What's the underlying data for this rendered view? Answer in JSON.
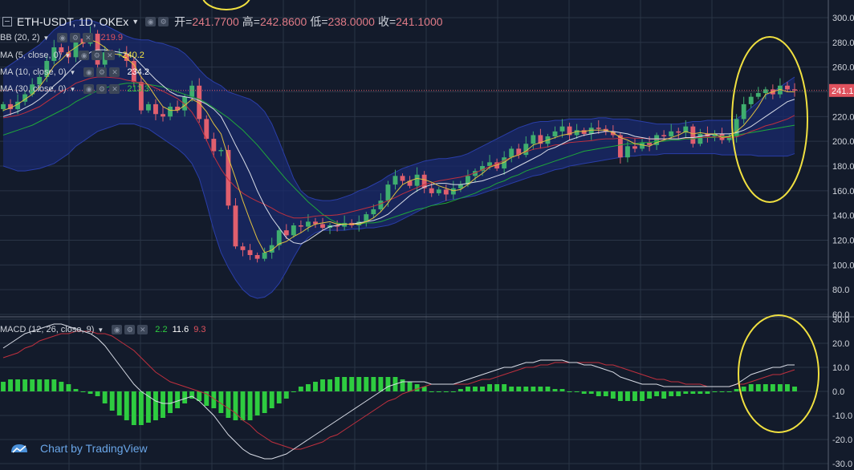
{
  "header": {
    "symbol": "ETH-USDT, 1D, OKEx",
    "open_label": "开=",
    "open": "241.7700",
    "high_label": "高=",
    "high": "242.8600",
    "low_label": "低=",
    "low": "238.0000",
    "close_label": "收=",
    "close": "241.1000"
  },
  "indicators": {
    "bb": {
      "label": "BB (20, 2)",
      "value": "219.9",
      "value_color": "#e0525e"
    },
    "ma5": {
      "label": "MA (5, close, 0)",
      "value": "240.2",
      "value_color": "#f5e642"
    },
    "ma10": {
      "label": "MA (10, close, 0)",
      "value": "234.2",
      "value_color": "#ffffff"
    },
    "ma30": {
      "label": "MA (30, close, 0)",
      "value": "213.3",
      "value_color": "#2ecc40"
    },
    "macd": {
      "label": "MACD (12, 26, close, 9)",
      "hist": "2.2",
      "macd": "11.6",
      "signal": "9.3",
      "hist_color": "#2ecc40",
      "macd_color": "#ffffff",
      "signal_color": "#e0525e"
    }
  },
  "price_label": "241.1",
  "watermark": "Chart by TradingView",
  "colors": {
    "up": "#3fae6f",
    "down": "#e05f6e",
    "bg": "#131b2b",
    "bb_fill": "#1a2a6c",
    "highlight": "#f0e040"
  },
  "chart_data": [
    {
      "type": "candlestick",
      "y_ticks": [
        "300.0",
        "280.0",
        "260.0",
        "240.0",
        "220.0",
        "200.0",
        "180.0",
        "160.0",
        "140.0",
        "120.0",
        "100.0",
        "80.0",
        "60.0"
      ],
      "ylim": [
        60,
        300
      ],
      "close": [
        230,
        226,
        232,
        238,
        246,
        252,
        265,
        276,
        272,
        268,
        283,
        279,
        287,
        262,
        272,
        270,
        271,
        265,
        248,
        225,
        230,
        222,
        220,
        228,
        225,
        236,
        245,
        218,
        202,
        192,
        193,
        148,
        115,
        112,
        108,
        105,
        110,
        116,
        128,
        124,
        132,
        131,
        135,
        133,
        130,
        132,
        131,
        134,
        132,
        135,
        141,
        145,
        152,
        165,
        172,
        168,
        164,
        173,
        162,
        158,
        161,
        157,
        162,
        165,
        172,
        176,
        180,
        183,
        178,
        187,
        194,
        189,
        198,
        205,
        198,
        204,
        208,
        212,
        205,
        209,
        206,
        211,
        210,
        208,
        205,
        187,
        196,
        194,
        199,
        197,
        205,
        204,
        208,
        207,
        212,
        198,
        206,
        204,
        206,
        201,
        204,
        218,
        230,
        236,
        239,
        242,
        238,
        245,
        242,
        241
      ],
      "ma5": [
        225,
        227,
        230,
        234,
        238,
        244,
        252,
        261,
        266,
        272,
        276,
        280,
        282,
        280,
        276,
        271,
        270,
        267,
        262,
        252,
        245,
        236,
        228,
        225,
        225,
        229,
        234,
        231,
        224,
        214,
        206,
        187,
        170,
        152,
        136,
        121,
        110,
        112,
        117,
        119,
        123,
        126,
        130,
        133,
        134,
        135,
        133,
        133,
        133,
        133,
        135,
        138,
        143,
        150,
        158,
        165,
        168,
        170,
        169,
        167,
        164,
        162,
        160,
        161,
        165,
        170,
        174,
        179,
        181,
        183,
        187,
        189,
        192,
        197,
        199,
        201,
        203,
        205,
        206,
        208,
        208,
        209,
        209,
        209,
        207,
        203,
        201,
        198,
        197,
        196,
        199,
        201,
        203,
        205,
        208,
        206,
        207,
        206,
        206,
        203,
        204,
        208,
        213,
        220,
        228,
        238,
        240,
        242,
        240,
        240
      ],
      "ma10": [
        220,
        222,
        224,
        227,
        230,
        234,
        239,
        245,
        250,
        256,
        262,
        267,
        272,
        274,
        274,
        273,
        272,
        271,
        268,
        262,
        256,
        250,
        245,
        240,
        237,
        236,
        235,
        233,
        230,
        226,
        220,
        209,
        197,
        186,
        174,
        160,
        148,
        138,
        130,
        122,
        118,
        117,
        120,
        124,
        128,
        131,
        132,
        133,
        133,
        134,
        135,
        136,
        138,
        141,
        146,
        151,
        156,
        160,
        163,
        165,
        166,
        166,
        165,
        165,
        166,
        167,
        168,
        170,
        172,
        174,
        177,
        180,
        183,
        186,
        189,
        193,
        195,
        198,
        201,
        203,
        205,
        206,
        207,
        208,
        208,
        207,
        206,
        204,
        203,
        202,
        202,
        202,
        202,
        202,
        203,
        203,
        204,
        205,
        206,
        206,
        206,
        207,
        209,
        212,
        216,
        220,
        224,
        228,
        232,
        234
      ],
      "ma30": [
        205,
        207,
        209,
        211,
        213,
        216,
        219,
        222,
        225,
        228,
        232,
        235,
        238,
        241,
        243,
        245,
        246,
        247,
        247,
        247,
        246,
        245,
        244,
        242,
        240,
        238,
        236,
        234,
        231,
        227,
        223,
        219,
        214,
        209,
        203,
        197,
        190,
        183,
        176,
        169,
        163,
        157,
        151,
        146,
        141,
        137,
        134,
        133,
        133,
        133,
        134,
        134,
        135,
        137,
        139,
        141,
        143,
        145,
        146,
        148,
        149,
        150,
        152,
        154,
        156,
        158,
        161,
        163,
        166,
        168,
        171,
        173,
        176,
        178,
        180,
        182,
        184,
        186,
        188,
        190,
        192,
        193,
        194,
        195,
        196,
        197,
        198,
        198,
        199,
        199,
        200,
        200,
        201,
        201,
        202,
        202,
        203,
        203,
        203,
        204,
        204,
        205,
        206,
        207,
        208,
        209,
        210,
        211,
        212,
        213
      ],
      "bb_upper": [
        258,
        262,
        266,
        270,
        274,
        278,
        284,
        290,
        294,
        296,
        298,
        298,
        298,
        296,
        294,
        291,
        288,
        285,
        283,
        282,
        282,
        280,
        279,
        277,
        275,
        271,
        265,
        258,
        252,
        248,
        245,
        240,
        238,
        236,
        234,
        230,
        224,
        214,
        200,
        185,
        170,
        160,
        155,
        153,
        152,
        152,
        153,
        155,
        157,
        160,
        162,
        165,
        168,
        172,
        175,
        178,
        180,
        182,
        184,
        185,
        186,
        186,
        187,
        188,
        190,
        193,
        196,
        199,
        202,
        205,
        208,
        211,
        213,
        215,
        216,
        216,
        217,
        217,
        218,
        218,
        218,
        218,
        219,
        219,
        218,
        218,
        218,
        217,
        216,
        215,
        214,
        214,
        214,
        214,
        215,
        216,
        216,
        217,
        217,
        217,
        217,
        218,
        222,
        227,
        232,
        237,
        240,
        244,
        248,
        252
      ],
      "bb_lower": [
        180,
        178,
        176,
        176,
        177,
        178,
        180,
        182,
        186,
        190,
        196,
        200,
        204,
        208,
        210,
        212,
        214,
        214,
        214,
        212,
        210,
        206,
        202,
        198,
        194,
        189,
        182,
        170,
        150,
        128,
        110,
        98,
        88,
        80,
        75,
        73,
        74,
        78,
        85,
        95,
        106,
        116,
        122,
        126,
        128,
        128,
        128,
        128,
        129,
        129,
        130,
        130,
        131,
        132,
        134,
        137,
        140,
        143,
        146,
        148,
        150,
        152,
        153,
        154,
        155,
        156,
        158,
        160,
        162,
        164,
        166,
        168,
        170,
        172,
        173,
        175,
        177,
        178,
        180,
        181,
        182,
        183,
        184,
        185,
        186,
        187,
        188,
        188,
        189,
        189,
        189,
        190,
        190,
        190,
        190,
        190,
        190,
        190,
        190,
        189,
        189,
        189,
        189,
        189,
        188,
        188,
        188,
        188,
        188,
        190
      ]
    },
    {
      "type": "macd",
      "y_ticks": [
        "30.0",
        "20.0",
        "10.0",
        "0.0",
        "-10.0",
        "-20.0",
        "-30.0"
      ],
      "ylim": [
        -30,
        30
      ],
      "macd": [
        18,
        20,
        22,
        24,
        25,
        26,
        27,
        28,
        28,
        27,
        26,
        25,
        24,
        22,
        19,
        15,
        11,
        7,
        3,
        0,
        -2,
        -4,
        -5,
        -5,
        -4,
        -3,
        -2,
        -4,
        -7,
        -10,
        -14,
        -18,
        -21,
        -24,
        -26,
        -27,
        -28,
        -28,
        -27,
        -26,
        -24,
        -22,
        -20,
        -18,
        -16,
        -14,
        -12,
        -10,
        -8,
        -6,
        -4,
        -2,
        0,
        2,
        3,
        4,
        4,
        4,
        4,
        3,
        3,
        3,
        3,
        4,
        5,
        6,
        7,
        8,
        9,
        10,
        10,
        11,
        12,
        12,
        13,
        13,
        13,
        13,
        12,
        12,
        11,
        11,
        10,
        9,
        8,
        6,
        5,
        4,
        3,
        3,
        3,
        2,
        2,
        2,
        2,
        2,
        2,
        2,
        2,
        2,
        2,
        3,
        5,
        7,
        8,
        9,
        10,
        10,
        11,
        11
      ],
      "signal": [
        14,
        15,
        16,
        18,
        19,
        21,
        22,
        23,
        24,
        24,
        25,
        25,
        25,
        24,
        24,
        23,
        21,
        19,
        17,
        14,
        11,
        8,
        6,
        4,
        3,
        2,
        1,
        0,
        -1,
        -3,
        -5,
        -7,
        -9,
        -12,
        -14,
        -17,
        -19,
        -21,
        -22,
        -23,
        -24,
        -24,
        -23,
        -22,
        -21,
        -19,
        -18,
        -16,
        -14,
        -12,
        -10,
        -8,
        -6,
        -4,
        -3,
        -1,
        0,
        1,
        2,
        3,
        3,
        3,
        3,
        3,
        3,
        4,
        5,
        5,
        6,
        7,
        8,
        9,
        10,
        10,
        11,
        11,
        12,
        12,
        12,
        12,
        12,
        12,
        12,
        11,
        11,
        10,
        9,
        8,
        7,
        6,
        5,
        5,
        4,
        4,
        3,
        3,
        3,
        2,
        2,
        2,
        2,
        3,
        3,
        4,
        5,
        6,
        7,
        7,
        8,
        9
      ],
      "hist": [
        4,
        5,
        5,
        5,
        5,
        5,
        5,
        5,
        4,
        3,
        1,
        0,
        -1,
        -2,
        -5,
        -8,
        -10,
        -12,
        -14,
        -14,
        -13,
        -12,
        -11,
        -9,
        -7,
        -5,
        -3,
        -4,
        -6,
        -7,
        -9,
        -11,
        -12,
        -12,
        -12,
        -10,
        -9,
        -7,
        -5,
        -3,
        0,
        2,
        3,
        4,
        5,
        5,
        6,
        6,
        6,
        6,
        6,
        6,
        6,
        6,
        6,
        5,
        4,
        3,
        2,
        0,
        0,
        0,
        0,
        1,
        2,
        2,
        2,
        3,
        3,
        3,
        2,
        2,
        2,
        2,
        2,
        2,
        1,
        1,
        0,
        0,
        -1,
        -1,
        -2,
        -2,
        -3,
        -4,
        -4,
        -4,
        -4,
        -3,
        -2,
        -3,
        -2,
        -2,
        -1,
        -1,
        -1,
        -1,
        0,
        0,
        0,
        1,
        2,
        3,
        3,
        3,
        3,
        3,
        3,
        2
      ]
    }
  ]
}
